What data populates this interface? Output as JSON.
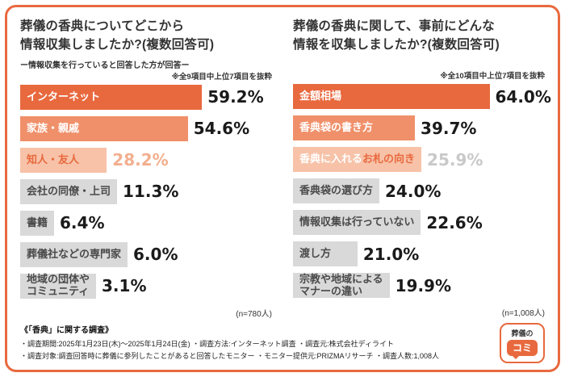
{
  "colors": {
    "accent": "#E8693E",
    "bar_tier1": "#E8693E",
    "bar_tier2": "#F0906A",
    "bar_tier3": "#F7C2A8",
    "bar_gray": "#D9D9D9"
  },
  "chart_data": [
    {
      "type": "bar",
      "title": "葬儀の香典についてどこから\n情報収集しましたか?(複数回答可)",
      "subtitle": "ー情報収集を行っていると回答した方が回答ー",
      "note": "※全9項目中上位7項目を抜粋",
      "n_label": "(n=780人)",
      "xlim": [
        0,
        82
      ],
      "legend": false,
      "categories": [
        "インターネット",
        "家族・親戚",
        "知人・友人",
        "会社の同僚・上司",
        "書籍",
        "葬儀社などの専門家",
        "地域の団体やコミュニティ"
      ],
      "values": [
        59.2,
        54.6,
        28.2,
        11.3,
        6.4,
        6.0,
        3.1
      ],
      "rows": [
        {
          "label": "インターネット",
          "value": 59.2,
          "value_label": "59.2%",
          "tier": 1
        },
        {
          "label": "家族・親戚",
          "value": 54.6,
          "value_label": "54.6%",
          "tier": 2
        },
        {
          "label": "知人・友人",
          "value": 28.2,
          "value_label": "28.2%",
          "tier": 3,
          "value_color": "#F2AF8F"
        },
        {
          "label": "会社の同僚・上司",
          "value": 11.3,
          "value_label": "11.3%",
          "tier": 0
        },
        {
          "label": "書籍",
          "value": 6.4,
          "value_label": "6.4%",
          "tier": 0
        },
        {
          "label": "葬儀社などの専門家",
          "value": 6.0,
          "value_label": "6.0%",
          "tier": 0
        },
        {
          "label": "地域の団体や\nコミュニティ",
          "value": 3.1,
          "value_label": "3.1%",
          "tier": 0
        }
      ]
    },
    {
      "type": "bar",
      "title": "葬儀の香典に関して、事前にどんな\n情報を収集しましたか?(複数回答可)",
      "note": "※全10項目中上位7項目を抜粋",
      "n_label": "(n=1,008人)",
      "xlim": [
        0,
        82
      ],
      "legend": false,
      "categories": [
        "金額相場",
        "香典袋の書き方",
        "香典に入れるお札の向き",
        "香典袋の選び方",
        "情報収集は行っていない",
        "渡し方",
        "宗教や地域によるマナーの違い"
      ],
      "values": [
        64.0,
        39.7,
        25.9,
        24.0,
        22.6,
        21.0,
        19.9
      ],
      "rows": [
        {
          "label": "金額相場",
          "value": 64.0,
          "value_label": "64.0%",
          "tier": 1
        },
        {
          "label": "香典袋の書き方",
          "value": 39.7,
          "value_label": "39.7%",
          "tier": 2
        },
        {
          "label": "香典に入れる",
          "label_accent": "お札の向き",
          "label_color": "#FFFFFF",
          "value": 25.9,
          "value_label": "25.9%",
          "tier": 3,
          "value_color": "#C9C9C9"
        },
        {
          "label": "香典袋の選び方",
          "value": 24.0,
          "value_label": "24.0%",
          "tier": 0
        },
        {
          "label": "情報収集は行っていない",
          "value": 22.6,
          "value_label": "22.6%",
          "tier": 0
        },
        {
          "label": "渡し方",
          "value": 21.0,
          "value_label": "21.0%",
          "tier": 0
        },
        {
          "label": "宗教や地域による\nマナーの違い",
          "value": 19.9,
          "value_label": "19.9%",
          "tier": 0
        }
      ]
    }
  ],
  "footer": {
    "heading": "《「香典」に関する調査》",
    "line1": "・調査期間:2025年1月23日(木)〜2025年1月24日(金)  ・調査方法:インターネット調査  ・調査元:株式会社ディライト",
    "line2": "・調査対象:調査回答時に葬儀に参列したことがあると回答したモニター  ・モニター提供元:PRIZMAリサーチ  ・調査人数:1,008人"
  },
  "logo": {
    "line1": "葬儀の",
    "line2": "コミ"
  }
}
